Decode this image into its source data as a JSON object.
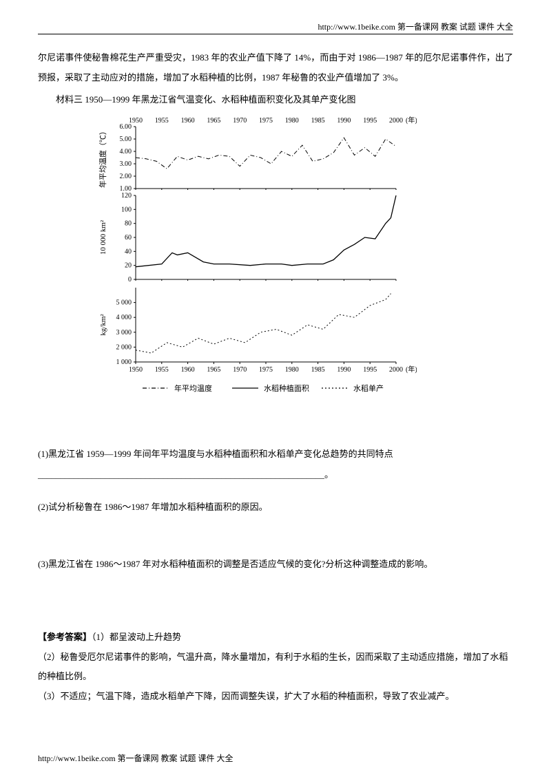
{
  "header": {
    "url": "http://www.1beike.com  第一备课网  教案  试题  课件  大全"
  },
  "footer": {
    "url": "http://www.1beike.com  第一备课网  教案  试题  课件  大全"
  },
  "intro_text": "尔尼诺事件使秘鲁棉花生产严重受灾，1983 年的农业产值下降了 14%，而由于对 1986—1987 年的厄尔尼诺事件作，出了预报，采取了主动应对的措施，增加了水稻种植的比例，1987 年秘鲁的农业产值增加了 3%。",
  "material_title": "材料三   1950—1999 年黑龙江省气温变化、水稻种植面积变化及其单产变化图",
  "chart": {
    "background": "#ffffff",
    "axis_color": "#000000",
    "line_color": "#000000",
    "grid_color": "#cccccc",
    "font_size_axis": 10,
    "years": [
      1950,
      1955,
      1960,
      1965,
      1970,
      1975,
      1980,
      1985,
      1990,
      1995,
      2000
    ],
    "year_label": "(年)",
    "panel_temp": {
      "y_label": "年平均温度（℃）",
      "ylim": [
        1.0,
        6.0
      ],
      "yticks": [
        1.0,
        2.0,
        3.0,
        4.0,
        5.0,
        6.0
      ],
      "style": "dash-dot",
      "data_x": [
        1950,
        1952,
        1954,
        1956,
        1958,
        1960,
        1962,
        1964,
        1966,
        1968,
        1970,
        1972,
        1974,
        1976,
        1978,
        1980,
        1982,
        1984,
        1986,
        1988,
        1990,
        1992,
        1994,
        1996,
        1998,
        2000
      ],
      "data_y": [
        3.5,
        3.4,
        3.2,
        2.6,
        3.6,
        3.3,
        3.6,
        3.4,
        3.7,
        3.6,
        2.8,
        3.7,
        3.5,
        3.0,
        4.0,
        3.6,
        4.5,
        3.2,
        3.4,
        3.9,
        5.1,
        3.7,
        4.3,
        3.6,
        5.0,
        4.4
      ]
    },
    "panel_area": {
      "y_label": "10 000 km²",
      "ylim": [
        0,
        120
      ],
      "yticks": [
        0,
        20,
        40,
        60,
        80,
        100,
        120
      ],
      "style": "solid",
      "line_width": 1.3,
      "data_x": [
        1950,
        1955,
        1957,
        1958,
        1960,
        1963,
        1965,
        1968,
        1972,
        1975,
        1978,
        1980,
        1983,
        1986,
        1988,
        1990,
        1992,
        1994,
        1996,
        1998,
        1999,
        2000
      ],
      "data_y": [
        18,
        22,
        38,
        35,
        38,
        25,
        22,
        22,
        20,
        22,
        22,
        20,
        22,
        22,
        28,
        42,
        50,
        60,
        58,
        80,
        88,
        120
      ]
    },
    "panel_yield": {
      "y_label": "kg/km²",
      "ylim": [
        1000,
        6000
      ],
      "yticks": [
        1000,
        2000,
        3000,
        4000,
        5000
      ],
      "style": "dotted",
      "data_x": [
        1950,
        1953,
        1956,
        1959,
        1962,
        1965,
        1968,
        1971,
        1974,
        1977,
        1980,
        1983,
        1986,
        1989,
        1992,
        1995,
        1998,
        1999
      ],
      "data_y": [
        1800,
        1600,
        2300,
        2000,
        2600,
        2200,
        2600,
        2300,
        3000,
        3200,
        2800,
        3500,
        3200,
        4200,
        4000,
        4800,
        5200,
        5600
      ]
    },
    "legend": {
      "items": [
        {
          "label": "年平均温度",
          "style": "dash-dot"
        },
        {
          "label": "水稻种植面积",
          "style": "solid"
        },
        {
          "label": "水稻单产",
          "style": "dotted"
        }
      ]
    }
  },
  "q1": "(1)黑龙江省 1959—1999 年间年平均温度与水稻种植面积和水稻单产变化总趋势的共同特点",
  "q1_blank": "________________________________________________________________。",
  "q2": "(2)试分析秘鲁在 1986～1987 年增加水稻种植面积的原因。",
  "q3": "(3)黑龙江省在 1986～1987 年对水稻种植面积的调整是否适应气候的变化?分析这种调整造成的影响。",
  "ans_label": "【参考答案】",
  "a1": "（1）都呈波动上升趋势",
  "a2": "（2）秘鲁受厄尔尼诺事件的影响，气温升高，降水量增加，有利于水稻的生长，因而采取了主动适应措施，增加了水稻的种植比例。",
  "a3": "（3）不适应；气温下降，造成水稻单产下降，因而调整失误，扩大了水稻的种植面积，导致了农业减产。"
}
